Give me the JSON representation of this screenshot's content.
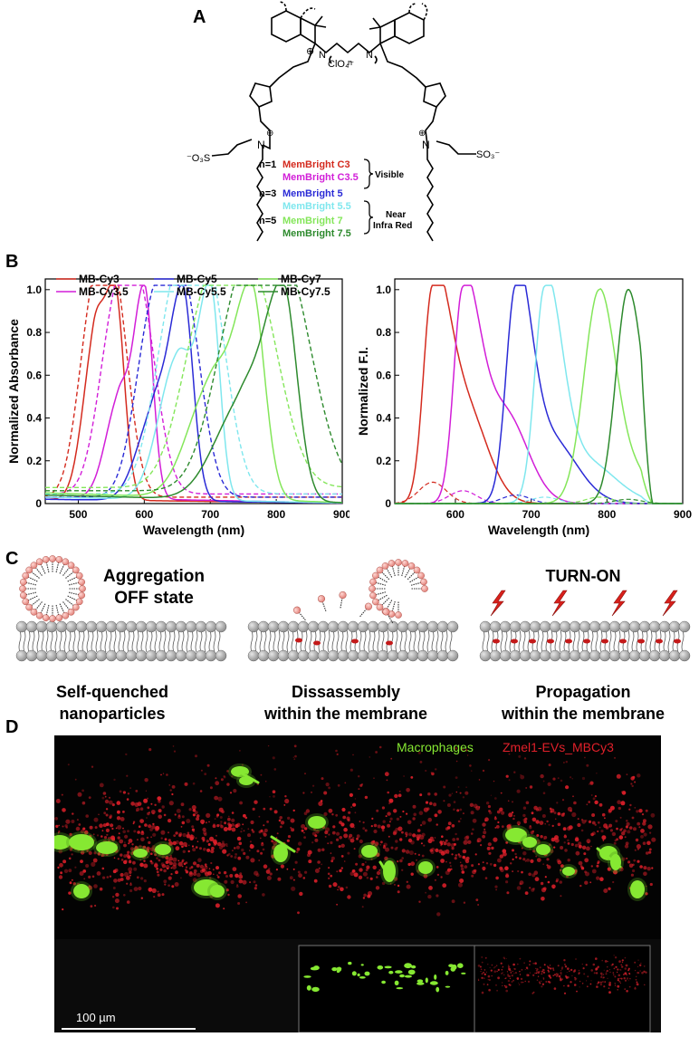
{
  "panels": {
    "a": "A",
    "b": "B",
    "c": "C",
    "d": "D"
  },
  "panel_a": {
    "counterion": "ClO₄⁻",
    "chain_index": "n",
    "sulfonate_left": "⁻O₃S",
    "sulfonate_right": "SO₃⁻",
    "positive_charge": "⊕",
    "atom_n": "N",
    "dyes": [
      {
        "n": "n=1",
        "name": "MemBright C3",
        "color": "#d42a1e"
      },
      {
        "n": "",
        "name": "MemBright C3.5",
        "color": "#d21ed8"
      },
      {
        "n": "n=3",
        "name": "MemBright 5",
        "color": "#2a2ad6"
      },
      {
        "n": "",
        "name": "MemBright 5.5",
        "color": "#7fe7ee"
      },
      {
        "n": "n=5",
        "name": "MemBright 7",
        "color": "#84e65a"
      },
      {
        "n": "",
        "name": "MemBright 7.5",
        "color": "#2d8a2d"
      }
    ],
    "bracket_visible": "Visible",
    "bracket_nir_1": "Near",
    "bracket_nir_2": "Infra Red"
  },
  "chart_data": [
    {
      "type": "line",
      "xlabel": "Wavelength (nm)",
      "ylabel": "Normalized Absorbance",
      "xlim": [
        450,
        900
      ],
      "ylim": [
        0,
        1.05
      ],
      "xticks": [
        500,
        600,
        700,
        800,
        900
      ],
      "yticks": [
        0,
        0.2,
        0.4,
        0.6,
        0.8,
        1.0
      ],
      "legend": [
        "MB-Cy3",
        "MB-Cy3.5",
        "MB-Cy5",
        "MB-Cy5.5",
        "MB-Cy7",
        "MB-Cy7.5"
      ],
      "colors": [
        "#d42a1e",
        "#d21ed8",
        "#2a2ad6",
        "#7fe7ee",
        "#84e65a",
        "#2d8a2d"
      ],
      "series": [
        {
          "name": "MB-Cy3",
          "peaks": [
            [
              555,
              1.0,
              20
            ],
            [
              522,
              0.55,
              18
            ]
          ],
          "base": 0.02,
          "dashed_peaks": [
            [
              555,
              0.9,
              22
            ],
            [
              520,
              0.75,
              22
            ]
          ]
        },
        {
          "name": "MB-Cy3.5",
          "peaks": [
            [
              600,
              1.0,
              18
            ],
            [
              560,
              0.42,
              20
            ]
          ],
          "base": 0.03,
          "dashed_peaks": [
            [
              595,
              0.8,
              25
            ],
            [
              555,
              0.75,
              25
            ]
          ]
        },
        {
          "name": "MB-Cy5",
          "peaks": [
            [
              658,
              1.0,
              22
            ],
            [
              612,
              0.36,
              25
            ]
          ],
          "base": 0.02,
          "dashed_peaks": [
            [
              660,
              0.92,
              26
            ],
            [
              612,
              0.8,
              26
            ]
          ]
        },
        {
          "name": "MB-Cy5.5",
          "peaks": [
            [
              700,
              1.0,
              20
            ],
            [
              650,
              0.65,
              28
            ]
          ],
          "base": 0.03,
          "dashed_peaks": [
            [
              650,
              0.95,
              32
            ],
            [
              700,
              0.82,
              28
            ]
          ]
        },
        {
          "name": "MB-Cy7",
          "peaks": [
            [
              762,
              1.0,
              28
            ],
            [
              700,
              0.5,
              35
            ]
          ],
          "base": 0.05,
          "dashed_peaks": [
            [
              765,
              0.92,
              40
            ],
            [
              695,
              0.8,
              38
            ]
          ]
        },
        {
          "name": "MB-Cy7.5",
          "peaks": [
            [
              810,
              1.0,
              30
            ],
            [
              745,
              0.42,
              40
            ]
          ],
          "base": 0.04,
          "dashed_peaks": [
            [
              815,
              0.95,
              42
            ],
            [
              745,
              0.82,
              40
            ]
          ]
        }
      ]
    },
    {
      "type": "line",
      "xlabel": "Wavelength (nm)",
      "ylabel": "Normalized F.I.",
      "xlim": [
        520,
        900
      ],
      "ylim": [
        0,
        1.05
      ],
      "xticks": [
        600,
        700,
        800,
        900
      ],
      "yticks": [
        0,
        0.2,
        0.4,
        0.6,
        0.8,
        1.0
      ],
      "colors": [
        "#d42a1e",
        "#d21ed8",
        "#2a2ad6",
        "#7fe7ee",
        "#84e65a",
        "#2d8a2d"
      ],
      "series": [
        {
          "name": "MB-Cy3",
          "peak": 570,
          "width_left": 12,
          "width_right": 22,
          "shoulder": [
            615,
            0.42,
            28
          ],
          "dashed_peak": 0.1
        },
        {
          "name": "MB-Cy3.5",
          "peak": 610,
          "width_left": 12,
          "width_right": 22,
          "shoulder": [
            665,
            0.42,
            30
          ],
          "dashed_peak": 0.06
        },
        {
          "name": "MB-Cy5",
          "peak": 680,
          "width_left": 13,
          "width_right": 20,
          "shoulder": [
            725,
            0.3,
            35
          ],
          "dashed_peak": 0.04
        },
        {
          "name": "MB-Cy5.5",
          "peak": 718,
          "width_left": 13,
          "width_right": 22,
          "shoulder": [
            770,
            0.2,
            40
          ],
          "dashed_peak": 0.03
        },
        {
          "name": "MB-Cy7",
          "peak": 790,
          "width_left": 20,
          "width_right": 22,
          "shoulder": [
            840,
            0.12,
            20
          ],
          "dashed_peak": 0.03
        },
        {
          "name": "MB-Cy7.5",
          "peak": 828,
          "width_left": 16,
          "width_right": 20,
          "shoulder": [
            870,
            0.05,
            15
          ],
          "dashed_peak": 0.02
        }
      ]
    }
  ],
  "panel_c": {
    "title_1": "Aggregation",
    "title_2": "OFF state",
    "turn_on": "TURN-ON",
    "caption_1_line_1": "Self-quenched",
    "caption_1_line_2": "nanoparticles",
    "caption_2_line_1": "Dissassembly",
    "caption_2_line_2": "within the membrane",
    "caption_3_line_1": "Propagation",
    "caption_3_line_2": "within the membrane"
  },
  "panel_d": {
    "legend_green": "Macrophages",
    "legend_red": "Zmel1-EVs_MBCy3",
    "scale_label": "100 µm",
    "green": "#86e832",
    "red": "#e0202a"
  }
}
